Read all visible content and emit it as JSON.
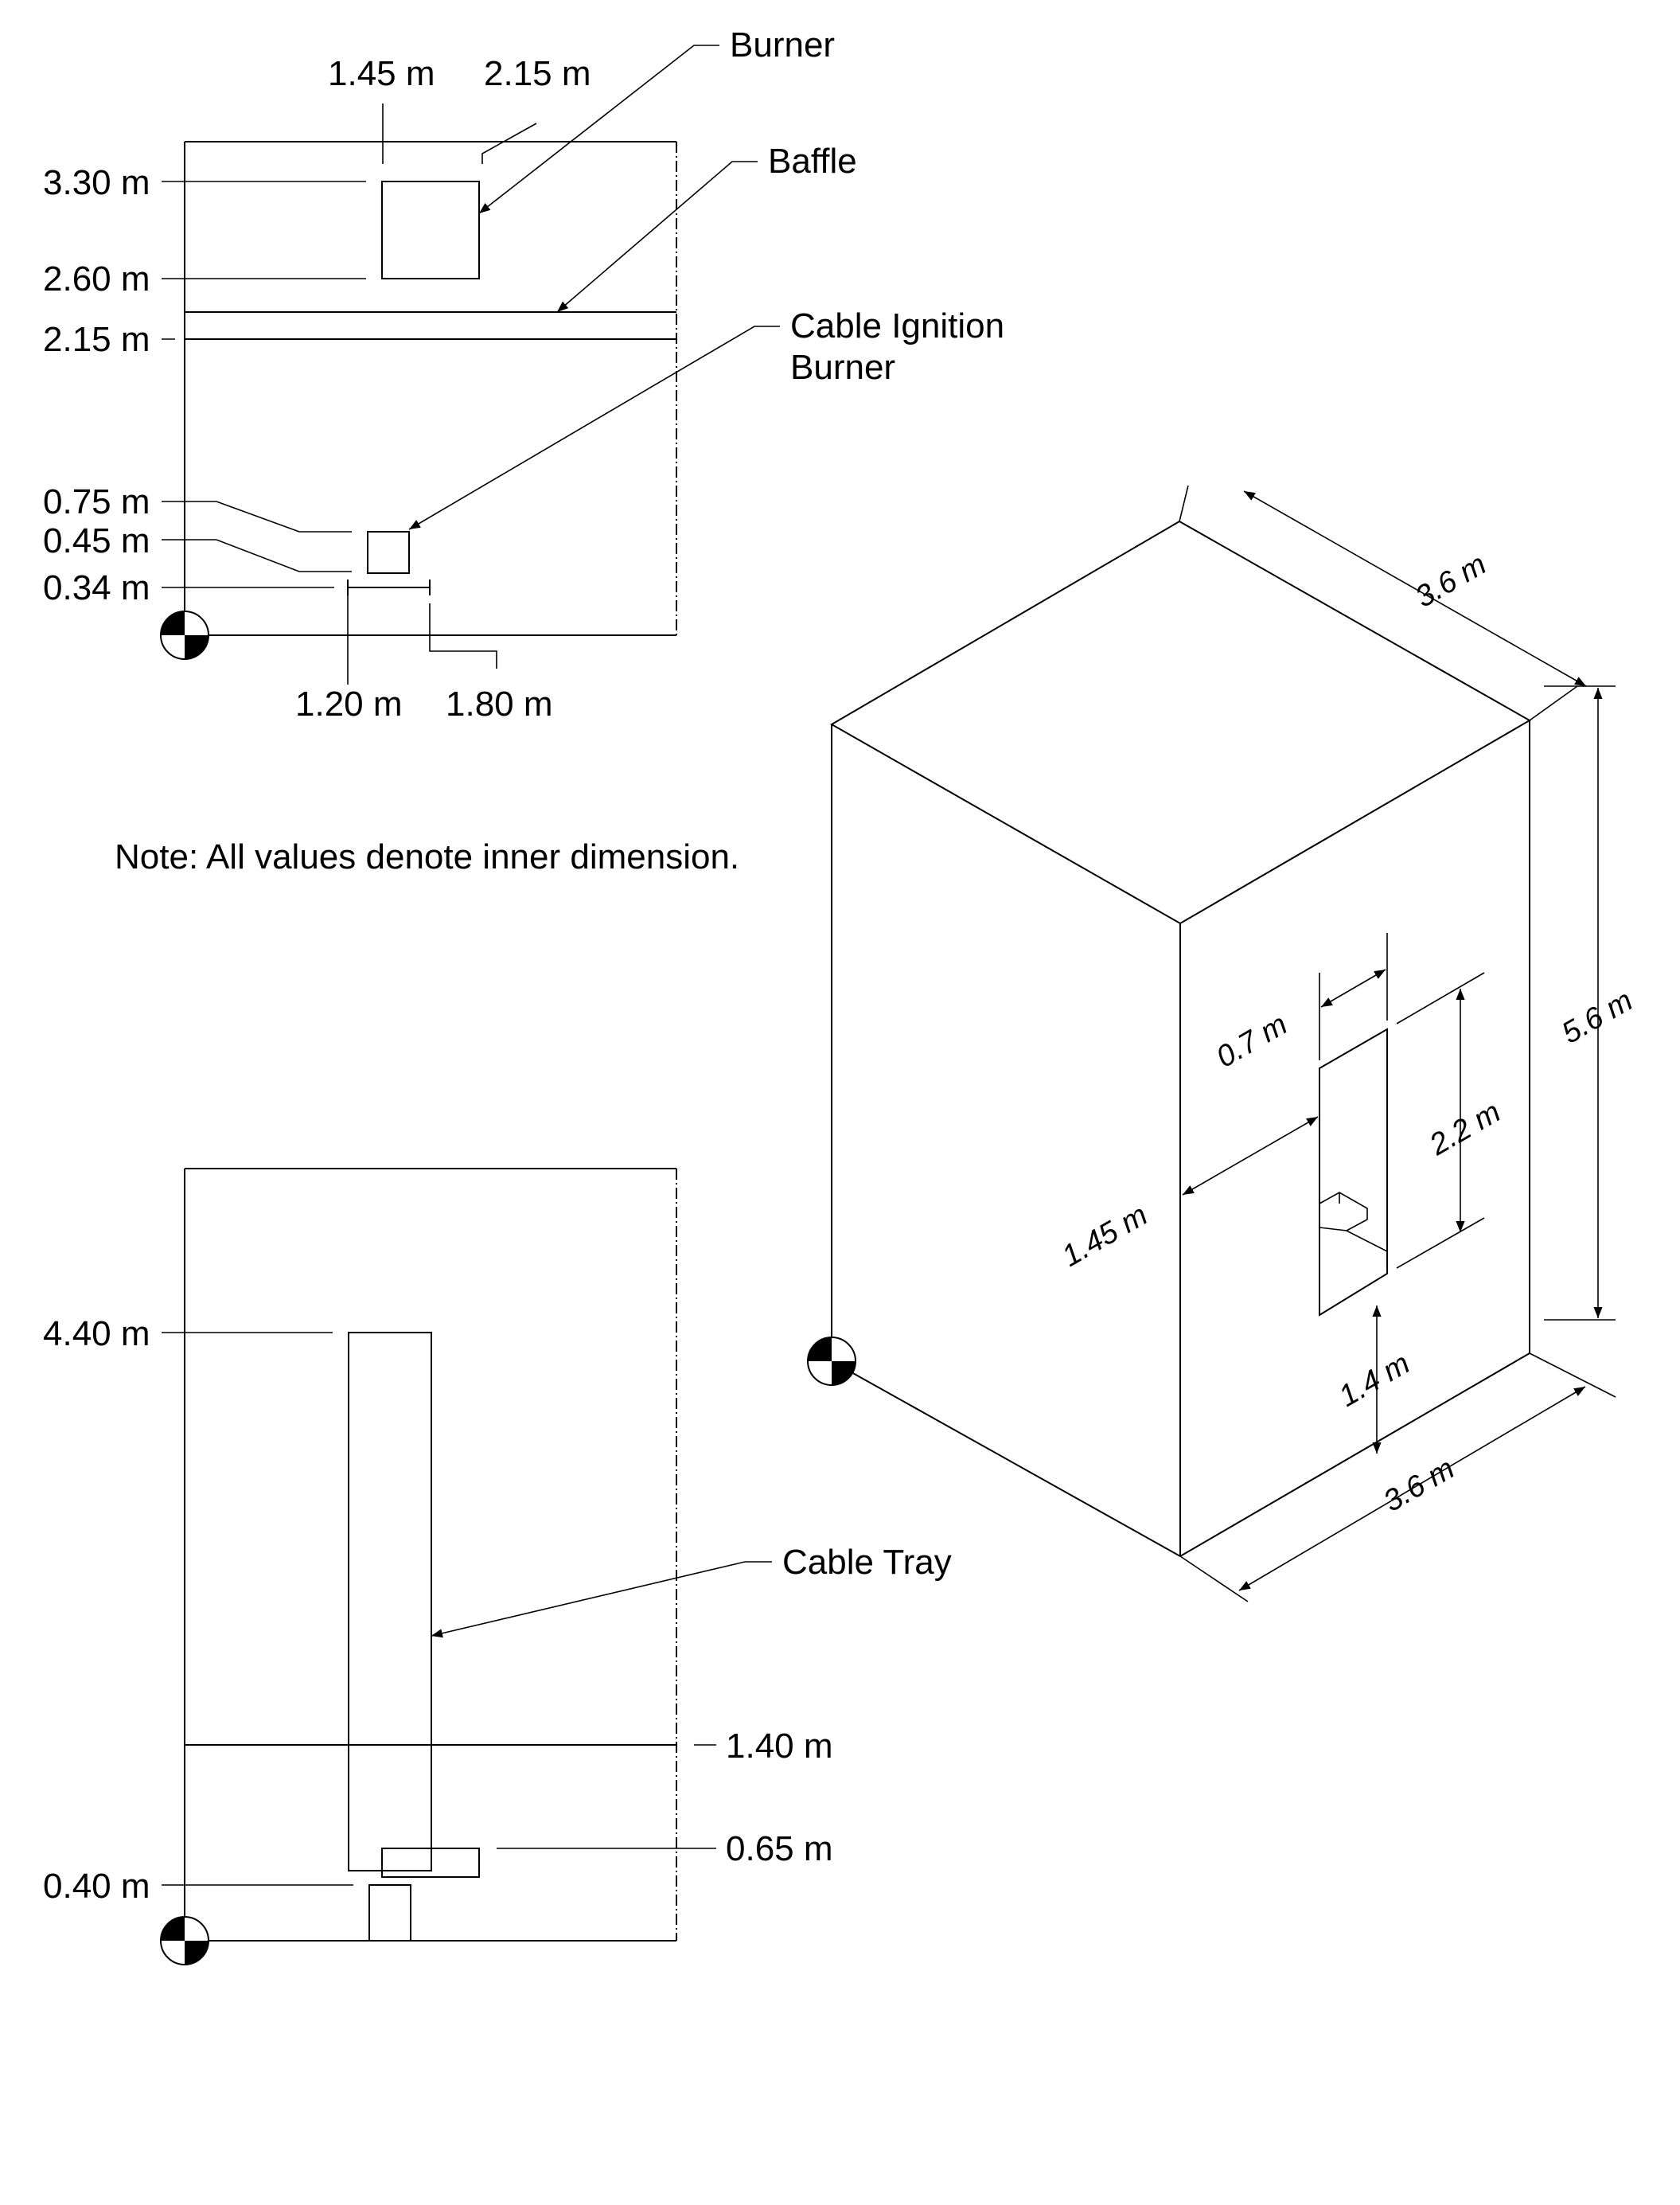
{
  "diagram": {
    "note": "Note: All values denote inner dimension.",
    "top_view": {
      "callouts": {
        "burner": "Burner",
        "baffle": "Baffle",
        "cable_ignition_line1": "Cable Ignition",
        "cable_ignition_line2": "Burner"
      },
      "dims": {
        "x_145": "1.45 m",
        "x_215": "2.15 m",
        "y_330": "3.30 m",
        "y_260": "2.60 m",
        "y_215": "2.15 m",
        "y_075": "0.75 m",
        "y_045": "0.45 m",
        "y_034": "0.34 m",
        "x_120": "1.20 m",
        "x_180": "1.80 m"
      }
    },
    "side_view": {
      "callouts": {
        "cable_tray": "Cable Tray"
      },
      "dims": {
        "y_440": "4.40 m",
        "y_140": "1.40 m",
        "y_065": "0.65 m",
        "y_040": "0.40 m"
      }
    },
    "iso_view": {
      "dims": {
        "depth_top": "3.6 m",
        "height": "5.6 m",
        "width_bottom": "3.6 m",
        "door_width": "0.7 m",
        "door_offset": "1.45 m",
        "door_height": "2.2 m",
        "door_sill": "1.4 m"
      }
    }
  }
}
